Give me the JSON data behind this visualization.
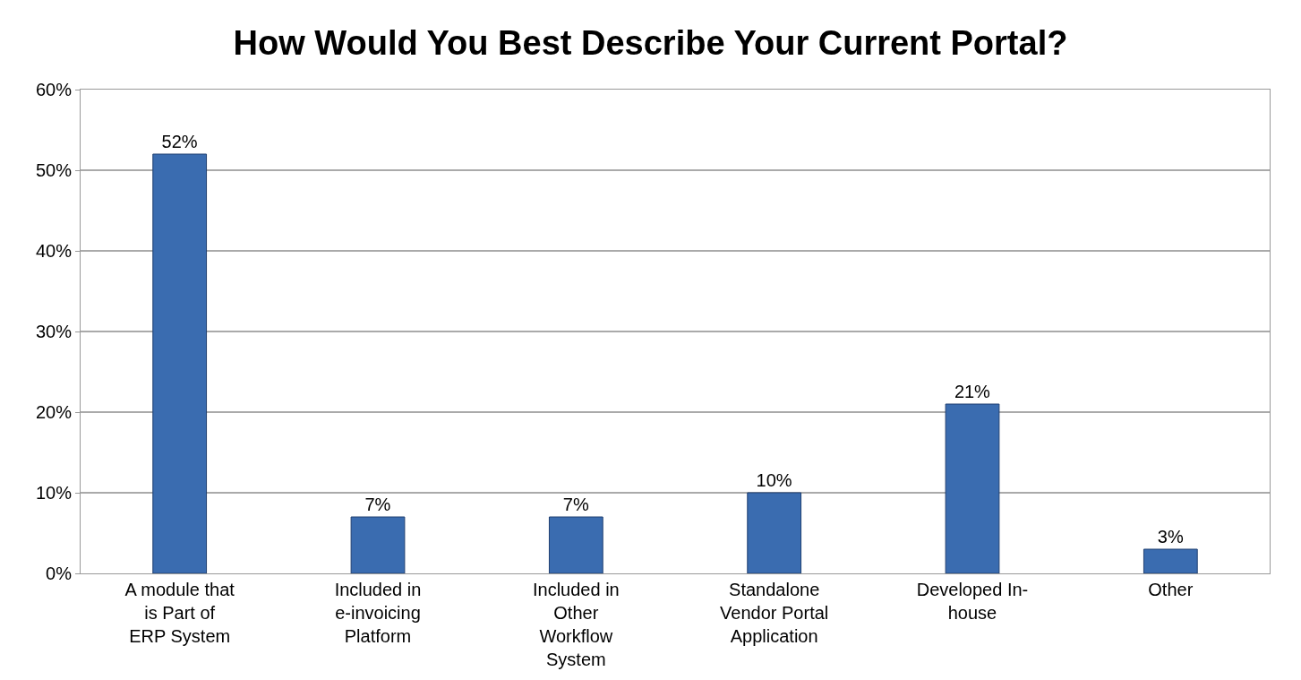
{
  "chart_data": {
    "type": "bar",
    "title": "How Would You Best Describe Your Current Portal?",
    "categories": [
      "A module that is Part of ERP System",
      "Included in e-invoicing Platform",
      "Included in Other Workflow System",
      "Standalone Vendor Portal Application",
      "Developed In-house",
      "Other"
    ],
    "values": [
      52,
      7,
      7,
      10,
      21,
      3
    ],
    "value_labels": [
      "52%",
      "7%",
      "7%",
      "10%",
      "21%",
      "3%"
    ],
    "color": "#3a6cb0",
    "ylim": [
      0,
      60
    ],
    "yticks": [
      {
        "value": 0,
        "label": "0%"
      },
      {
        "value": 10,
        "label": "10%"
      },
      {
        "value": 20,
        "label": "20%"
      },
      {
        "value": 30,
        "label": "30%"
      },
      {
        "value": 40,
        "label": "40%"
      },
      {
        "value": 50,
        "label": "50%"
      },
      {
        "value": 60,
        "label": "60%"
      }
    ],
    "grid": "y"
  }
}
